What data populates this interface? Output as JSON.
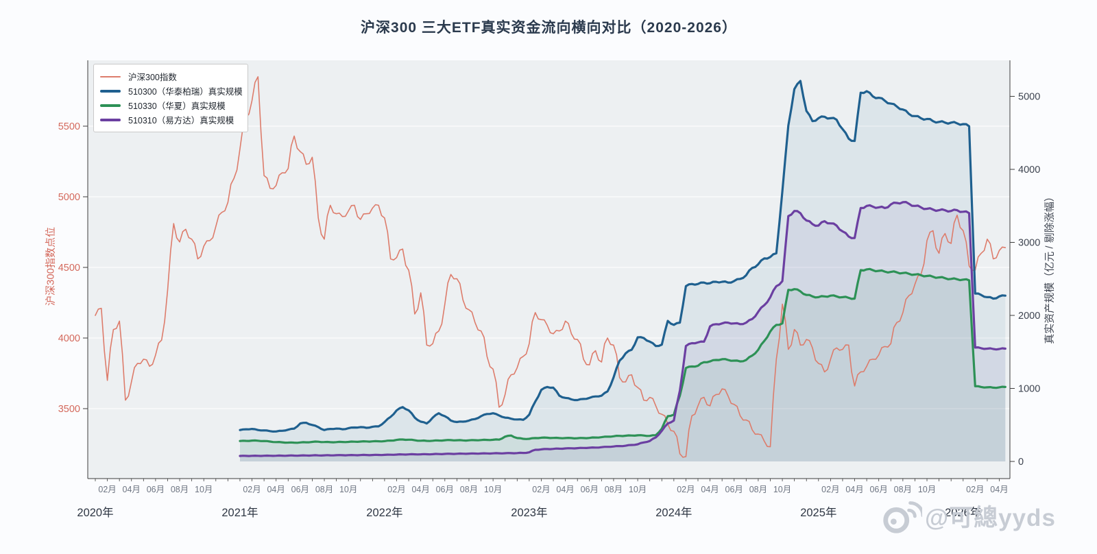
{
  "title": "沪深300 三大ETF真实资金流向横向对比（2020-2026）",
  "watermark": {
    "text": "@可總yyds",
    "icon": "weibo-icon"
  },
  "chart_data": {
    "type": "line",
    "title": "沪深300 三大ETF真实资金流向横向对比（2020-2026）",
    "plot_bg": "#edf0f2",
    "grid_color": "#ffffff",
    "spine_color": "#3c3c3c",
    "month_label_color": "#6e7582",
    "year_label_color": "#2f3744",
    "x_axis": {
      "start_month": "2020-01",
      "end_month": "2026-04",
      "points_per_month": 2,
      "month_tick_labels": [
        "02月",
        "04月",
        "06月",
        "08月",
        "10月"
      ],
      "month_tick_offsets": [
        1,
        3,
        5,
        7,
        9
      ],
      "total_months": 76,
      "year_labels": [
        {
          "label": "2020年",
          "month_index": 0
        },
        {
          "label": "2021年",
          "month_index": 12
        },
        {
          "label": "2022年",
          "month_index": 24
        },
        {
          "label": "2023年",
          "month_index": 36
        },
        {
          "label": "2024年",
          "month_index": 48
        },
        {
          "label": "2025年",
          "month_index": 60
        },
        {
          "label": "2026年",
          "month_index": 72
        }
      ]
    },
    "left_axis": {
      "label": "沪深300指数点位",
      "ticks": [
        3500,
        4000,
        4500,
        5000,
        5500
      ],
      "range": [
        3080,
        5940
      ],
      "color": "#d4695c"
    },
    "right_axis": {
      "label": "真实资产规模（亿元 / 剔除涨幅）",
      "ticks": [
        0,
        1000,
        2000,
        3000,
        4000,
        5000
      ],
      "range": [
        0,
        5500
      ],
      "color": "#3e4450"
    },
    "legend_position": "top-left",
    "series": [
      {
        "name": "沪深300指数",
        "axis": "left",
        "color": "#dd7c6b",
        "line_width": 1.6,
        "area_fill": false,
        "start_month_index": 0,
        "values": [
          4160,
          4210,
          3700,
          4060,
          4120,
          3560,
          3690,
          3820,
          3850,
          3800,
          3880,
          3985,
          4340,
          4810,
          4680,
          4770,
          4700,
          4560,
          4650,
          4690,
          4790,
          4890,
          4960,
          5130,
          5340,
          5560,
          5680,
          5850,
          5150,
          5060,
          5080,
          5170,
          5200,
          5430,
          5320,
          5230,
          5280,
          4850,
          4700,
          4940,
          4880,
          4860,
          4900,
          4940,
          4840,
          4880,
          4920,
          4940,
          4850,
          4560,
          4570,
          4630,
          4480,
          4170,
          4320,
          3950,
          3960,
          4050,
          4240,
          4450,
          4420,
          4270,
          4200,
          4110,
          4050,
          3870,
          3780,
          3510,
          3600,
          3740,
          3790,
          3870,
          3960,
          4180,
          4130,
          4090,
          4030,
          4050,
          4120,
          4030,
          3990,
          3850,
          3810,
          3910,
          3830,
          4000,
          3950,
          3720,
          3690,
          3740,
          3650,
          3560,
          3580,
          3520,
          3460,
          3390,
          3340,
          3180,
          3160,
          3450,
          3520,
          3580,
          3520,
          3600,
          3640,
          3590,
          3530,
          3450,
          3420,
          3350,
          3320,
          3270,
          3230,
          3850,
          4240,
          3920,
          4060,
          3950,
          3990,
          3930,
          3820,
          3760,
          3850,
          3930,
          3920,
          3950,
          3660,
          3760,
          3800,
          3850,
          3880,
          3940,
          3960,
          4110,
          4180,
          4300,
          4380,
          4450,
          4690,
          4760,
          4600,
          4740,
          4670,
          4870,
          4760,
          4510,
          4480,
          4600,
          4700,
          4560,
          4620,
          4640
        ]
      },
      {
        "name": "510300（华泰柏瑞）真实规模",
        "axis": "right",
        "color": "#1f608f",
        "line_width": 3.2,
        "area_fill": true,
        "fill_color": "rgba(31,96,143,0.08)",
        "start_month_index": 12,
        "values": [
          430,
          440,
          445,
          430,
          425,
          415,
          410,
          420,
          435,
          450,
          520,
          530,
          500,
          470,
          430,
          445,
          450,
          440,
          455,
          465,
          470,
          460,
          475,
          480,
          540,
          610,
          700,
          745,
          700,
          600,
          545,
          520,
          600,
          660,
          620,
          560,
          540,
          545,
          560,
          580,
          620,
          650,
          660,
          630,
          600,
          585,
          575,
          570,
          640,
          820,
          980,
          1020,
          1010,
          900,
          870,
          850,
          840,
          855,
          870,
          890,
          900,
          960,
          1150,
          1380,
          1480,
          1530,
          1700,
          1690,
          1640,
          1580,
          1600,
          1925,
          1870,
          1900,
          2400,
          2430,
          2430,
          2450,
          2440,
          2460,
          2460,
          2450,
          2470,
          2500,
          2550,
          2650,
          2700,
          2780,
          2800,
          2850,
          3700,
          4600,
          5100,
          5210,
          4800,
          4660,
          4700,
          4720,
          4700,
          4680,
          4550,
          4420,
          4390,
          5050,
          5070,
          5000,
          4980,
          4940,
          4900,
          4860,
          4820,
          4760,
          4730,
          4700,
          4690,
          4660,
          4650,
          4640,
          4640,
          4630,
          4620,
          4590,
          2300,
          2280,
          2250,
          2230,
          2260,
          2270
        ]
      },
      {
        "name": "510330（华夏）真实规模",
        "axis": "right",
        "color": "#2d9156",
        "line_width": 3.2,
        "area_fill": true,
        "fill_color": "rgba(45,145,86,0.08)",
        "start_month_index": 12,
        "values": [
          280,
          282,
          285,
          284,
          280,
          272,
          265,
          262,
          258,
          257,
          260,
          262,
          268,
          270,
          266,
          264,
          265,
          267,
          268,
          270,
          272,
          274,
          275,
          276,
          278,
          285,
          295,
          300,
          298,
          290,
          284,
          282,
          284,
          286,
          290,
          292,
          290,
          288,
          289,
          291,
          293,
          295,
          297,
          299,
          340,
          355,
          320,
          310,
          310,
          320,
          325,
          325,
          322,
          320,
          320,
          320,
          318,
          320,
          322,
          328,
          332,
          340,
          345,
          350,
          352,
          355,
          358,
          355,
          350,
          360,
          450,
          620,
          640,
          900,
          1280,
          1300,
          1310,
          1360,
          1370,
          1390,
          1400,
          1390,
          1380,
          1370,
          1390,
          1450,
          1530,
          1650,
          1780,
          1870,
          1890,
          2350,
          2360,
          2330,
          2280,
          2260,
          2250,
          2260,
          2270,
          2260,
          2250,
          2240,
          2230,
          2620,
          2630,
          2620,
          2610,
          2600,
          2595,
          2590,
          2580,
          2570,
          2560,
          2550,
          2540,
          2530,
          2520,
          2510,
          2500,
          2495,
          2490,
          2480,
          1030,
          1020,
          1015,
          1010,
          1015,
          1020
        ]
      },
      {
        "name": "510310（易方达）真实规模",
        "axis": "right",
        "color": "#6b3fa1",
        "line_width": 3.2,
        "area_fill": true,
        "fill_color": "rgba(107,63,161,0.08)",
        "start_month_index": 12,
        "values": [
          75,
          76,
          77,
          77,
          78,
          78,
          78,
          79,
          80,
          80,
          81,
          82,
          83,
          83,
          84,
          84,
          85,
          85,
          86,
          86,
          87,
          88,
          88,
          89,
          90,
          92,
          94,
          96,
          97,
          98,
          98,
          99,
          100,
          101,
          103,
          104,
          105,
          106,
          107,
          108,
          109,
          110,
          111,
          112,
          113,
          114,
          115,
          116,
          125,
          160,
          165,
          170,
          172,
          175,
          178,
          180,
          182,
          185,
          188,
          190,
          195,
          200,
          205,
          210,
          215,
          225,
          235,
          260,
          280,
          330,
          420,
          520,
          560,
          970,
          1580,
          1620,
          1630,
          1640,
          1850,
          1880,
          1890,
          1900,
          1890,
          1880,
          1900,
          1950,
          2050,
          2140,
          2250,
          2400,
          2470,
          3360,
          3430,
          3400,
          3300,
          3250,
          3230,
          3290,
          3260,
          3230,
          3150,
          3080,
          3060,
          3470,
          3500,
          3490,
          3480,
          3470,
          3520,
          3540,
          3550,
          3530,
          3500,
          3480,
          3460,
          3450,
          3440,
          3440,
          3430,
          3440,
          3420,
          3400,
          1560,
          1550,
          1545,
          1540,
          1540,
          1545
        ]
      }
    ]
  }
}
